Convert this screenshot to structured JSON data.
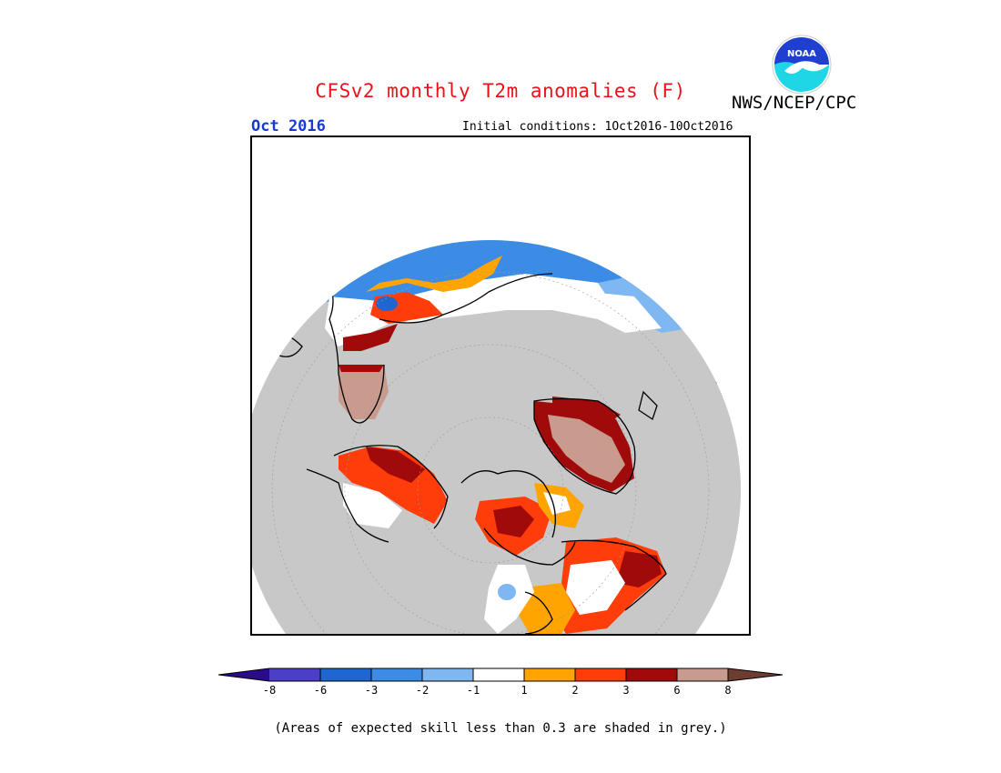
{
  "header": {
    "title": "CFSv2 monthly T2m anomalies (F)",
    "agency": "NWS/NCEP/CPC",
    "logo_text": "NOAA",
    "month": "Oct 2016",
    "initial_conditions": "Initial conditions: 1Oct2016-10Oct2016"
  },
  "legend": {
    "labels": [
      "-8",
      "-6",
      "-3",
      "-2",
      "-1",
      "1",
      "2",
      "3",
      "6",
      "8"
    ],
    "colors": [
      "#2a0c8a",
      "#4b3fc7",
      "#1f66d1",
      "#3c8ce6",
      "#7fb7f2",
      "#ffffff",
      "#ffa400",
      "#ff3d0a",
      "#a00a0a",
      "#c99b8e",
      "#6e3d32"
    ]
  },
  "footnote": "(Areas of expected skill less than 0.3 are shaded in grey.)",
  "colors": {
    "title": "#e8121b",
    "month": "#1739d6",
    "skill_grey": "#c8c8c8",
    "outside_domain": "#ffffff"
  }
}
